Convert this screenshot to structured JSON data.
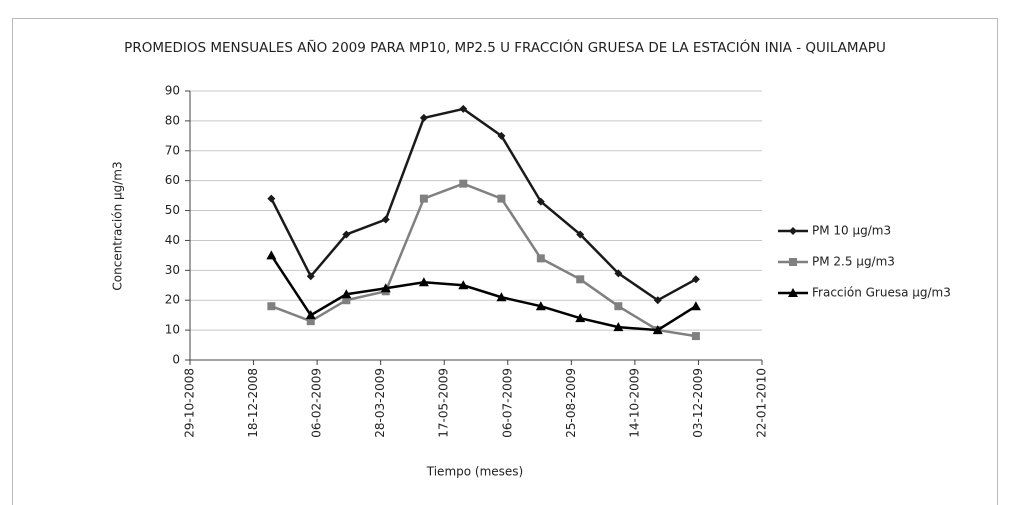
{
  "chart_data": {
    "type": "line",
    "title": "PROMEDIOS MENSUALES  AÑO 2009 PARA MP10, MP2.5 U FRACCIÓN GRUESA DE LA ESTACIÓN INIA - QUILAMAPU",
    "x_label": "Tiempo (meses)",
    "y_label": "Concentración  µg/m3",
    "x": [
      "01-01-2009",
      "01-02-2009",
      "01-03-2009",
      "01-04-2009",
      "01-05-2009",
      "01-06-2009",
      "01-07-2009",
      "01-08-2009",
      "01-09-2009",
      "01-10-2009",
      "01-11-2009",
      "01-12-2009"
    ],
    "series": [
      {
        "name": "PM 10 µg/m3",
        "color": "#1a1a1a",
        "marker": "diamond",
        "values": [
          54,
          28,
          42,
          47,
          81,
          84,
          75,
          53,
          42,
          29,
          20,
          27
        ]
      },
      {
        "name": "PM 2.5 µg/m3",
        "color": "#808080",
        "marker": "square",
        "values": [
          18,
          13,
          20,
          23,
          54,
          59,
          54,
          34,
          27,
          18,
          10,
          8
        ]
      },
      {
        "name": "Fracción Gruesa µg/m3",
        "color": "#000000",
        "marker": "triangle",
        "values": [
          35,
          15,
          22,
          24,
          26,
          25,
          21,
          18,
          14,
          11,
          10,
          18
        ]
      }
    ],
    "xlim": [
      "29-10-2008",
      "22-01-2010"
    ],
    "xticks": [
      "29-10-2008",
      "18-12-2008",
      "06-02-2009",
      "28-03-2009",
      "17-05-2009",
      "06-07-2009",
      "25-08-2009",
      "14-10-2009",
      "03-12-2009",
      "22-01-2010"
    ],
    "ylim": [
      0,
      90
    ],
    "yticks": [
      0,
      10,
      20,
      30,
      40,
      50,
      60,
      70,
      80,
      90
    ],
    "grid": true,
    "legend": "right"
  }
}
